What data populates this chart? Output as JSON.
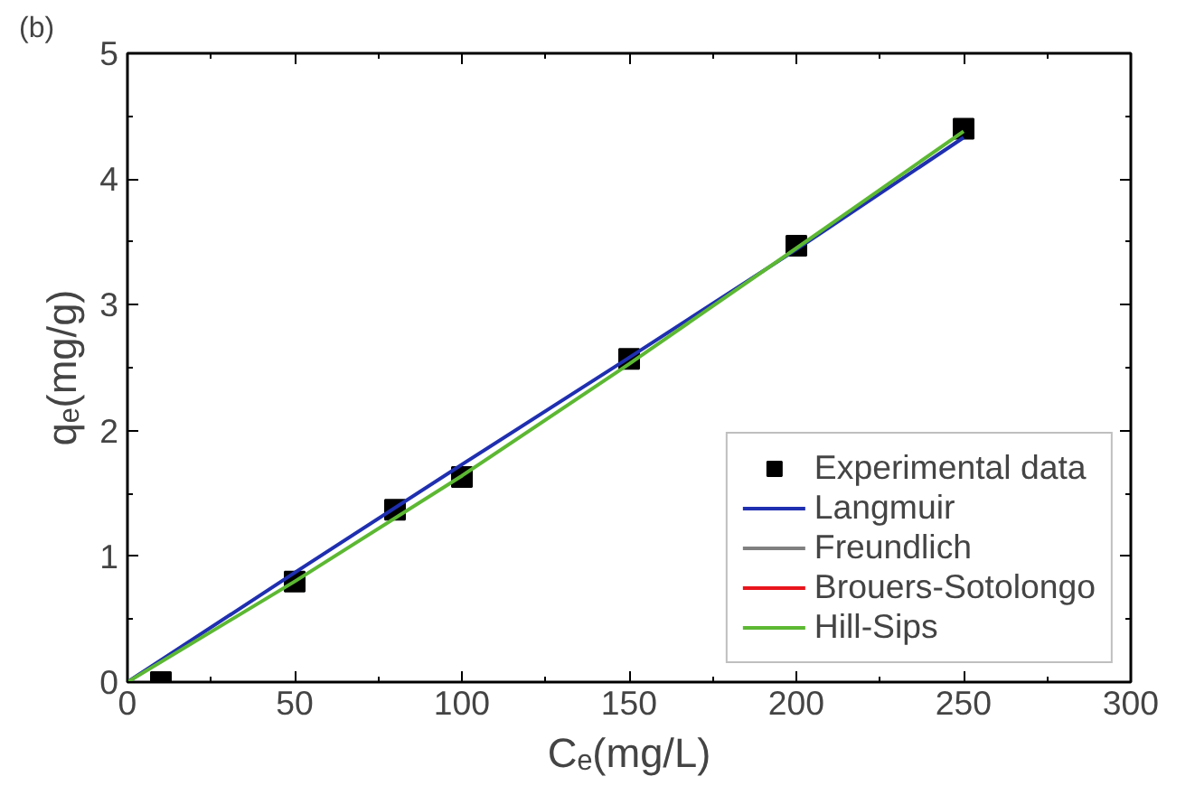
{
  "chart_data": {
    "type": "line",
    "title": "(b)",
    "xlabel": "Cₑ(mg/L)",
    "ylabel": "qₑ(mg/g)",
    "xlim": [
      0,
      300
    ],
    "ylim": [
      0,
      5
    ],
    "xticks": [
      0,
      50,
      100,
      150,
      200,
      250,
      300
    ],
    "yticks": [
      0,
      1,
      2,
      3,
      4,
      5
    ],
    "grid": false,
    "legend": "bottom right",
    "line_style": "solid",
    "series": [
      {
        "name": "Experimental data",
        "type": "scatter",
        "marker": "square",
        "color": "#000000",
        "x": [
          10,
          50,
          80,
          100,
          150,
          200,
          250
        ],
        "values": [
          0,
          0.8,
          1.37,
          1.63,
          2.57,
          3.47,
          4.4
        ]
      },
      {
        "name": "Langmuir",
        "color": "#1f2fb0",
        "x": [
          0,
          50,
          100,
          150,
          200,
          250
        ],
        "values": [
          0,
          0.87,
          1.73,
          2.58,
          3.44,
          4.33
        ]
      },
      {
        "name": "Freundlich",
        "color": "#808080"
      },
      {
        "name": "Brouers-Sotolongo",
        "color": "#e8141c"
      },
      {
        "name": "Hill-Sips",
        "color": "#5cb832",
        "x": [
          0,
          50,
          100,
          150,
          200,
          250
        ],
        "values": [
          0,
          0.8,
          1.64,
          2.53,
          3.45,
          4.38
        ]
      }
    ]
  }
}
